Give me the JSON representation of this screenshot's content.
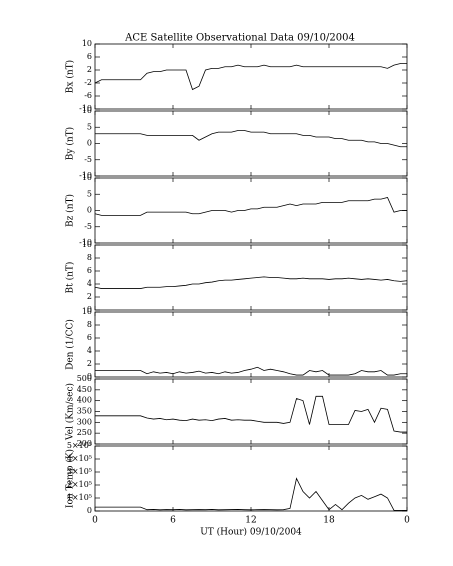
{
  "chart_data": [
    {
      "type": "line",
      "title": "ACE Satellite Observational Data   09/10/2004",
      "ylabel": "Bx (nT)",
      "color": "#000000",
      "x": [
        0,
        0.5,
        1,
        1.5,
        2,
        2.5,
        3,
        3.5,
        4,
        4.5,
        5,
        5.5,
        6,
        6.5,
        7,
        7.5,
        8,
        8.5,
        9,
        9.5,
        10,
        10.5,
        11,
        11.5,
        12,
        12.5,
        13,
        13.5,
        14,
        14.5,
        15,
        15.5,
        16,
        16.5,
        17,
        17.5,
        18,
        18.5,
        19,
        19.5,
        20,
        20.5,
        21,
        21.5,
        22,
        22.5,
        23,
        23.5,
        24
      ],
      "values": [
        -2,
        -1,
        -1,
        -1,
        -1,
        -1,
        -1,
        -1,
        1,
        1.5,
        1.5,
        2,
        2,
        2,
        2,
        -4,
        -3,
        2,
        2.5,
        2.5,
        3,
        3,
        3.5,
        3,
        3,
        3,
        3.5,
        3,
        3,
        3,
        3,
        3.5,
        3,
        3,
        3,
        3,
        3,
        3,
        3,
        3,
        3,
        3,
        3,
        3,
        3,
        2.5,
        3.5,
        4,
        4
      ],
      "xlim": [
        0,
        24
      ],
      "ylim": [
        -10,
        10
      ],
      "yticks": [
        10,
        6,
        2,
        -2,
        -6,
        -10
      ]
    },
    {
      "type": "line",
      "ylabel": "By (nT)",
      "color": "#000000",
      "x": [
        0,
        0.5,
        1,
        1.5,
        2,
        2.5,
        3,
        3.5,
        4,
        4.5,
        5,
        5.5,
        6,
        6.5,
        7,
        7.5,
        8,
        8.5,
        9,
        9.5,
        10,
        10.5,
        11,
        11.5,
        12,
        12.5,
        13,
        13.5,
        14,
        14.5,
        15,
        15.5,
        16,
        16.5,
        17,
        17.5,
        18,
        18.5,
        19,
        19.5,
        20,
        20.5,
        21,
        21.5,
        22,
        22.5,
        23,
        23.5,
        24
      ],
      "values": [
        3,
        3,
        3,
        3,
        3,
        3,
        3,
        3,
        2.5,
        2.5,
        2.5,
        2.5,
        2.5,
        2.5,
        2.5,
        2.5,
        1,
        2,
        3,
        3.5,
        3.5,
        3.5,
        4,
        4,
        3.5,
        3.5,
        3.5,
        3,
        3,
        3,
        3,
        3,
        2.5,
        2.5,
        2,
        2,
        2,
        1.5,
        1.5,
        1,
        1,
        1,
        0.5,
        0.5,
        0,
        0,
        -0.5,
        -1,
        -1
      ],
      "xlim": [
        0,
        24
      ],
      "ylim": [
        -10,
        10
      ],
      "yticks": [
        10,
        5,
        0,
        -5,
        -10
      ]
    },
    {
      "type": "line",
      "ylabel": "Bz (nT)",
      "color": "#000000",
      "x": [
        0,
        0.5,
        1,
        1.5,
        2,
        2.5,
        3,
        3.5,
        4,
        4.5,
        5,
        5.5,
        6,
        6.5,
        7,
        7.5,
        8,
        8.5,
        9,
        9.5,
        10,
        10.5,
        11,
        11.5,
        12,
        12.5,
        13,
        13.5,
        14,
        14.5,
        15,
        15.5,
        16,
        16.5,
        17,
        17.5,
        18,
        18.5,
        19,
        19.5,
        20,
        20.5,
        21,
        21.5,
        22,
        22.5,
        23,
        23.5,
        24
      ],
      "values": [
        -1,
        -1.5,
        -1.5,
        -1.5,
        -1.5,
        -1.5,
        -1.5,
        -1.5,
        -0.5,
        -0.5,
        -0.5,
        -0.5,
        -0.5,
        -0.5,
        -0.5,
        -1,
        -1,
        -0.5,
        0,
        0,
        0,
        -0.5,
        0,
        0,
        0.5,
        0.5,
        1,
        1,
        1,
        1.5,
        2,
        1.5,
        2,
        2,
        2,
        2.5,
        2.5,
        2.5,
        2.5,
        3,
        3,
        3,
        3,
        3.5,
        3.5,
        4,
        -0.5,
        0,
        0
      ],
      "xlim": [
        0,
        24
      ],
      "ylim": [
        -10,
        10
      ],
      "yticks": [
        10,
        5,
        0,
        -5,
        -10
      ]
    },
    {
      "type": "line",
      "ylabel": "Bt (nT)",
      "color": "#000000",
      "x": [
        0,
        0.5,
        1,
        1.5,
        2,
        2.5,
        3,
        3.5,
        4,
        4.5,
        5,
        5.5,
        6,
        6.5,
        7,
        7.5,
        8,
        8.5,
        9,
        9.5,
        10,
        10.5,
        11,
        11.5,
        12,
        12.5,
        13,
        13.5,
        14,
        14.5,
        15,
        15.5,
        16,
        16.5,
        17,
        17.5,
        18,
        18.5,
        19,
        19.5,
        20,
        20.5,
        21,
        21.5,
        22,
        22.5,
        23,
        23.5,
        24
      ],
      "values": [
        3.5,
        3.3,
        3.3,
        3.3,
        3.3,
        3.3,
        3.3,
        3.3,
        3.5,
        3.5,
        3.5,
        3.6,
        3.6,
        3.7,
        3.8,
        4,
        4,
        4.2,
        4.3,
        4.5,
        4.6,
        4.6,
        4.7,
        4.8,
        4.9,
        5,
        5.1,
        5,
        5,
        4.9,
        4.8,
        4.8,
        4.9,
        4.8,
        4.8,
        4.8,
        4.7,
        4.8,
        4.8,
        4.9,
        4.8,
        4.7,
        4.8,
        4.7,
        4.6,
        4.7,
        4.5,
        4.4,
        4.5
      ],
      "xlim": [
        0,
        24
      ],
      "ylim": [
        0,
        10
      ],
      "yticks": [
        10,
        8,
        6,
        4,
        2,
        0
      ]
    },
    {
      "type": "line",
      "ylabel": "Den (1/CC)",
      "color": "#000000",
      "x": [
        0,
        0.5,
        1,
        1.5,
        2,
        2.5,
        3,
        3.5,
        4,
        4.5,
        5,
        5.5,
        6,
        6.5,
        7,
        7.5,
        8,
        8.5,
        9,
        9.5,
        10,
        10.5,
        11,
        11.5,
        12,
        12.5,
        13,
        13.5,
        14,
        14.5,
        15,
        15.5,
        16,
        16.5,
        17,
        17.5,
        18,
        18.5,
        19,
        19.5,
        20,
        20.5,
        21,
        21.5,
        22,
        22.5,
        23,
        23.5,
        24
      ],
      "values": [
        1,
        1,
        1,
        1,
        1,
        1,
        1,
        1,
        0.5,
        0.8,
        0.6,
        0.7,
        0.5,
        0.8,
        0.6,
        0.7,
        0.9,
        0.6,
        0.7,
        0.5,
        0.8,
        0.6,
        0.7,
        1,
        1.2,
        1.5,
        1,
        1.2,
        1,
        0.8,
        0.5,
        0.3,
        0.3,
        1,
        0.8,
        1,
        0.3,
        0.3,
        0.3,
        0.3,
        0.5,
        1,
        0.8,
        0.8,
        1,
        0.3,
        0.3,
        0.5,
        0.5
      ],
      "xlim": [
        0,
        24
      ],
      "ylim": [
        0,
        10
      ],
      "yticks": [
        10,
        8,
        6,
        4,
        2,
        0
      ]
    },
    {
      "type": "line",
      "ylabel": "Vel (Km/sec)",
      "color": "#000000",
      "x": [
        0,
        0.5,
        1,
        1.5,
        2,
        2.5,
        3,
        3.5,
        4,
        4.5,
        5,
        5.5,
        6,
        6.5,
        7,
        7.5,
        8,
        8.5,
        9,
        9.5,
        10,
        10.5,
        11,
        11.5,
        12,
        12.5,
        13,
        13.5,
        14,
        14.5,
        15,
        15.5,
        16,
        16.5,
        17,
        17.5,
        18,
        18.5,
        19,
        19.5,
        20,
        20.5,
        21,
        21.5,
        22,
        22.5,
        23,
        23.5,
        24
      ],
      "values": [
        330,
        330,
        330,
        330,
        330,
        330,
        330,
        330,
        320,
        315,
        318,
        312,
        315,
        310,
        308,
        315,
        310,
        312,
        308,
        315,
        318,
        310,
        312,
        310,
        310,
        305,
        300,
        300,
        300,
        295,
        300,
        410,
        400,
        290,
        420,
        420,
        290,
        290,
        290,
        290,
        355,
        350,
        360,
        300,
        365,
        360,
        260,
        255,
        255
      ],
      "xlim": [
        0,
        24
      ],
      "ylim": [
        200,
        500
      ],
      "yticks": [
        500,
        450,
        400,
        350,
        300,
        250,
        200
      ]
    },
    {
      "type": "line",
      "ylabel": "Ion Temp (K)",
      "xlabel": "UT (Hour)  09/10/2004",
      "color": "#000000",
      "x": [
        0,
        0.5,
        1,
        1.5,
        2,
        2.5,
        3,
        3.5,
        4,
        4.5,
        5,
        5.5,
        6,
        6.5,
        7,
        7.5,
        8,
        8.5,
        9,
        9.5,
        10,
        10.5,
        11,
        11.5,
        12,
        12.5,
        13,
        13.5,
        14,
        14.5,
        15,
        15.5,
        16,
        16.5,
        17,
        17.5,
        18,
        18.5,
        19,
        19.5,
        20,
        20.5,
        21,
        21.5,
        22,
        22.5,
        23,
        23.5,
        24
      ],
      "values": [
        30000,
        30000,
        30000,
        30000,
        30000,
        30000,
        30000,
        30000,
        10000,
        12000,
        9000,
        11000,
        10000,
        12000,
        9000,
        10000,
        11000,
        10000,
        12000,
        9000,
        10000,
        11000,
        12000,
        10000,
        9000,
        10000,
        11000,
        10000,
        9000,
        10000,
        20000,
        250000,
        150000,
        100000,
        150000,
        80000,
        10000,
        50000,
        10000,
        60000,
        100000,
        120000,
        90000,
        110000,
        130000,
        100000,
        5000,
        5000,
        5000
      ],
      "xlim": [
        0,
        24
      ],
      "ylim": [
        0,
        500000
      ],
      "yticks": [
        {
          "value": 500000,
          "label": "5×10⁵"
        },
        {
          "value": 400000,
          "label": "4×10⁵"
        },
        {
          "value": 300000,
          "label": "3×10⁵"
        },
        {
          "value": 200000,
          "label": "2×10⁵"
        },
        {
          "value": 100000,
          "label": "1×10⁵"
        },
        0
      ],
      "xticks": [
        0,
        6,
        12,
        18,
        {
          "value": 24,
          "label": "0"
        }
      ]
    }
  ]
}
